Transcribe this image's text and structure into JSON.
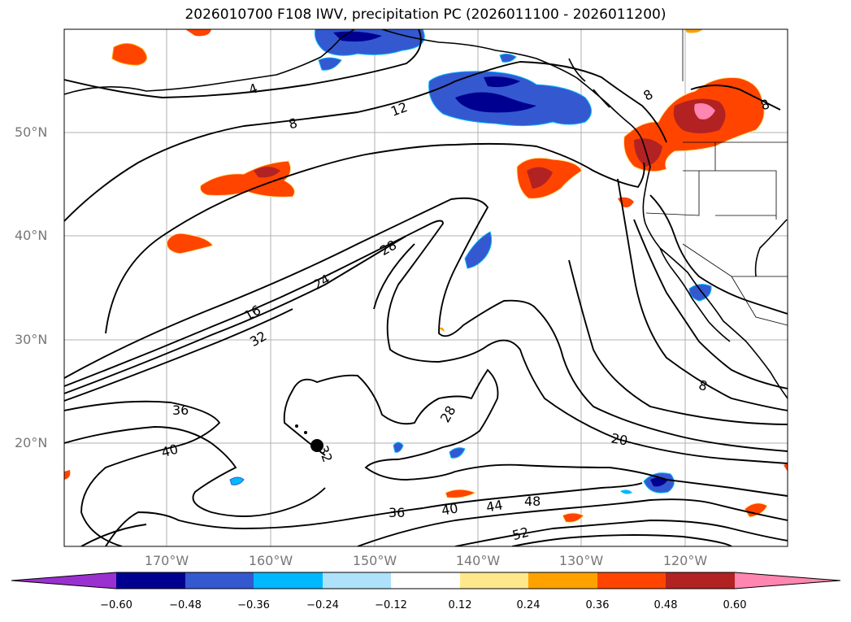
{
  "title": "2026010700 F108 IWV, precipitation PC (2026011100 - 2026011200)",
  "lat_ticks": [
    "50°N",
    "40°N",
    "30°N",
    "20°N"
  ],
  "lon_ticks": [
    "170°W",
    "160°W",
    "150°W",
    "140°W",
    "130°W",
    "120°W"
  ],
  "colorbar": {
    "colors": [
      "#9b30d0",
      "#000090",
      "#3458d0",
      "#00b8ff",
      "#aee2fb",
      "#ffffff",
      "#ffe88c",
      "#ffa200",
      "#ff4400",
      "#b22222",
      "#ff86b0",
      "#ff86b0"
    ],
    "labels": [
      "−0.60",
      "−0.48",
      "−0.36",
      "−0.24",
      "−0.12",
      "0.12",
      "0.24",
      "0.36",
      "0.48",
      "0.60"
    ]
  },
  "contour_labels": [
    "4",
    "8",
    "12",
    "16",
    "24",
    "28",
    "32",
    "36",
    "40",
    "36",
    "40",
    "44",
    "48",
    "52",
    "20",
    "8",
    "28",
    "32",
    "8",
    "8"
  ]
}
